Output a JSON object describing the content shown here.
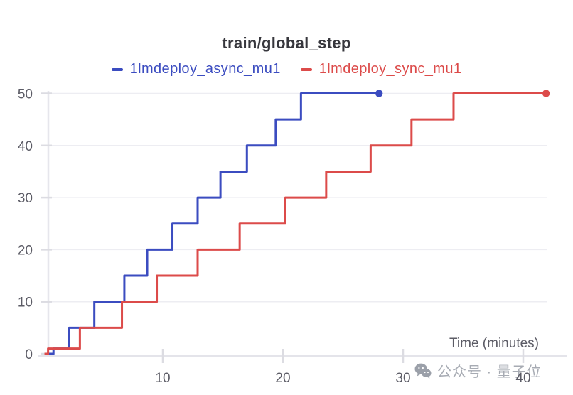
{
  "chart_data": {
    "type": "line",
    "step_interpolation": "before",
    "title": "train/global_step",
    "xlabel": "Time (minutes)",
    "ylabel": "",
    "x_ticks": [
      10,
      20,
      30,
      40
    ],
    "y_ticks": [
      0,
      10,
      20,
      30,
      40,
      50
    ],
    "xlim": [
      0,
      43
    ],
    "ylim": [
      0,
      50
    ],
    "grid": "horizontal",
    "legend_position": "top",
    "series": [
      {
        "name": "1lmdeploy_async_mu1",
        "color": "#3b4cc0",
        "points": [
          [
            0.3,
            0
          ],
          [
            0.9,
            1
          ],
          [
            2.2,
            5
          ],
          [
            4.3,
            10
          ],
          [
            6.8,
            15
          ],
          [
            8.7,
            20
          ],
          [
            10.8,
            25
          ],
          [
            12.9,
            30
          ],
          [
            14.8,
            35
          ],
          [
            17.0,
            40
          ],
          [
            19.4,
            45
          ],
          [
            21.5,
            50
          ],
          [
            28.0,
            50
          ]
        ]
      },
      {
        "name": "1lmdeploy_sync_mu1",
        "color": "#dc4b4a",
        "points": [
          [
            0.15,
            0
          ],
          [
            0.45,
            1
          ],
          [
            3.1,
            5
          ],
          [
            6.6,
            10
          ],
          [
            9.5,
            15
          ],
          [
            12.9,
            20
          ],
          [
            16.4,
            25
          ],
          [
            20.2,
            30
          ],
          [
            23.6,
            35
          ],
          [
            27.3,
            40
          ],
          [
            30.7,
            45
          ],
          [
            34.2,
            50
          ],
          [
            41.9,
            50
          ]
        ]
      }
    ]
  },
  "watermark": {
    "icon": "wechat-icon",
    "text": "公众号 · 量子位"
  }
}
